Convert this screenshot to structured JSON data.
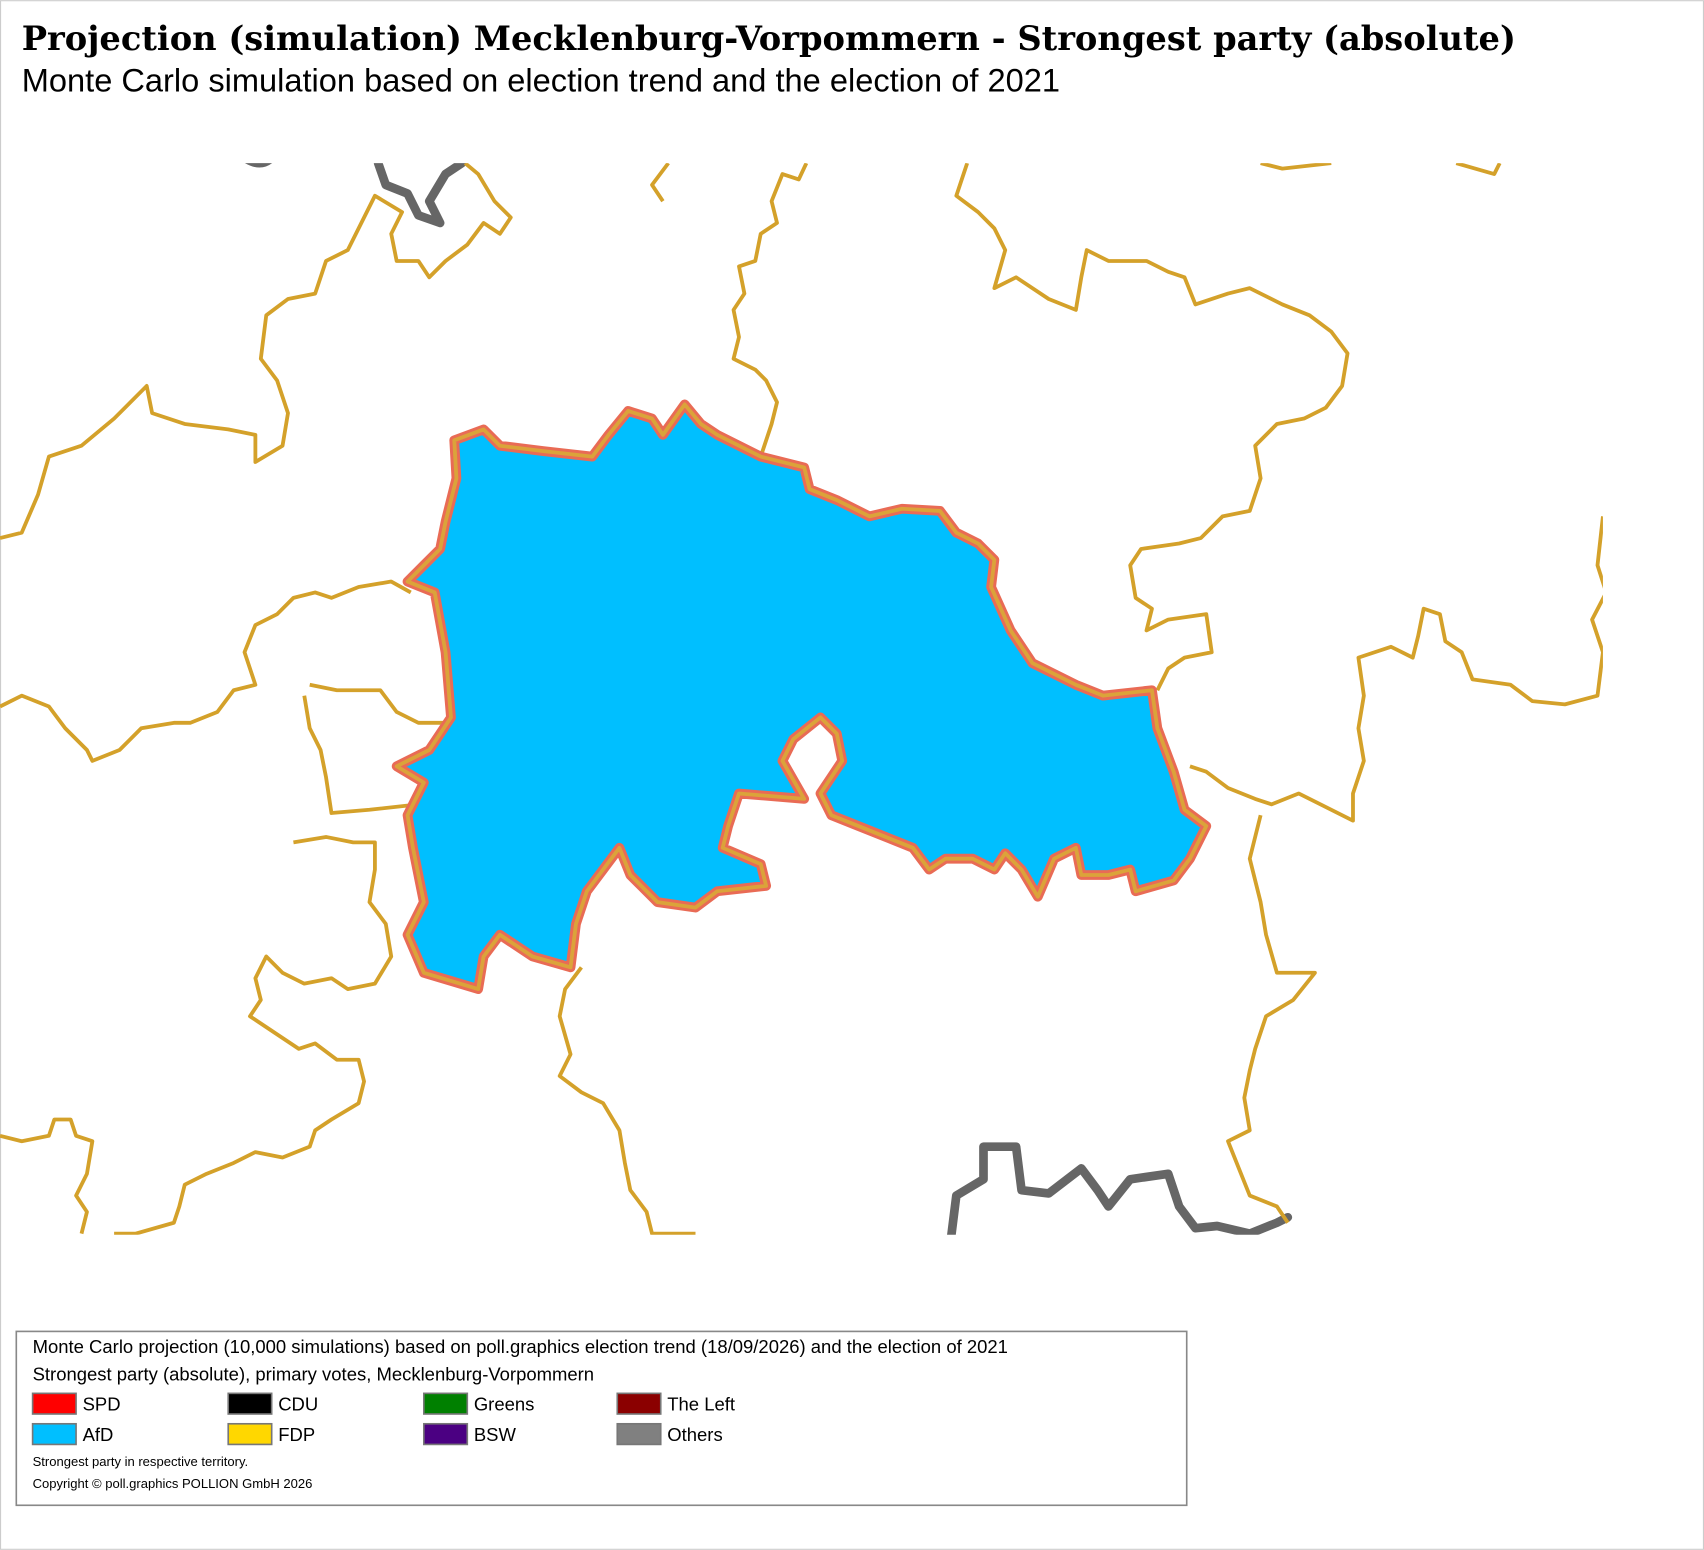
{
  "title": "Projection (simulation) Mecklenburg-Vorpommern - Strongest party (absolute)",
  "subtitle": "Monte Carlo simulation based on election trend and the election of 2021",
  "legend": {
    "lines": [
      "Monte Carlo projection (10,000 simulations) based on poll.graphics election trend (18/09/2026) and the election of 2021",
      "Strongest party (absolute), primary votes, Mecklenburg-Vorpommern"
    ],
    "items": [
      {
        "label": "SPD",
        "color": "#ff0000"
      },
      {
        "label": "CDU",
        "color": "#000000"
      },
      {
        "label": "Greens",
        "color": "#008000"
      },
      {
        "label": "The Left",
        "color": "#8b0000"
      },
      {
        "label": "AfD",
        "color": "#00bfff"
      },
      {
        "label": "FDP",
        "color": "#ffd700"
      },
      {
        "label": "BSW",
        "color": "#4b0082"
      },
      {
        "label": "Others",
        "color": "#808080"
      }
    ],
    "notes": [
      "Strongest party in respective territory.",
      "Copyright © poll.graphics POLLION GmbH 2026"
    ]
  }
}
